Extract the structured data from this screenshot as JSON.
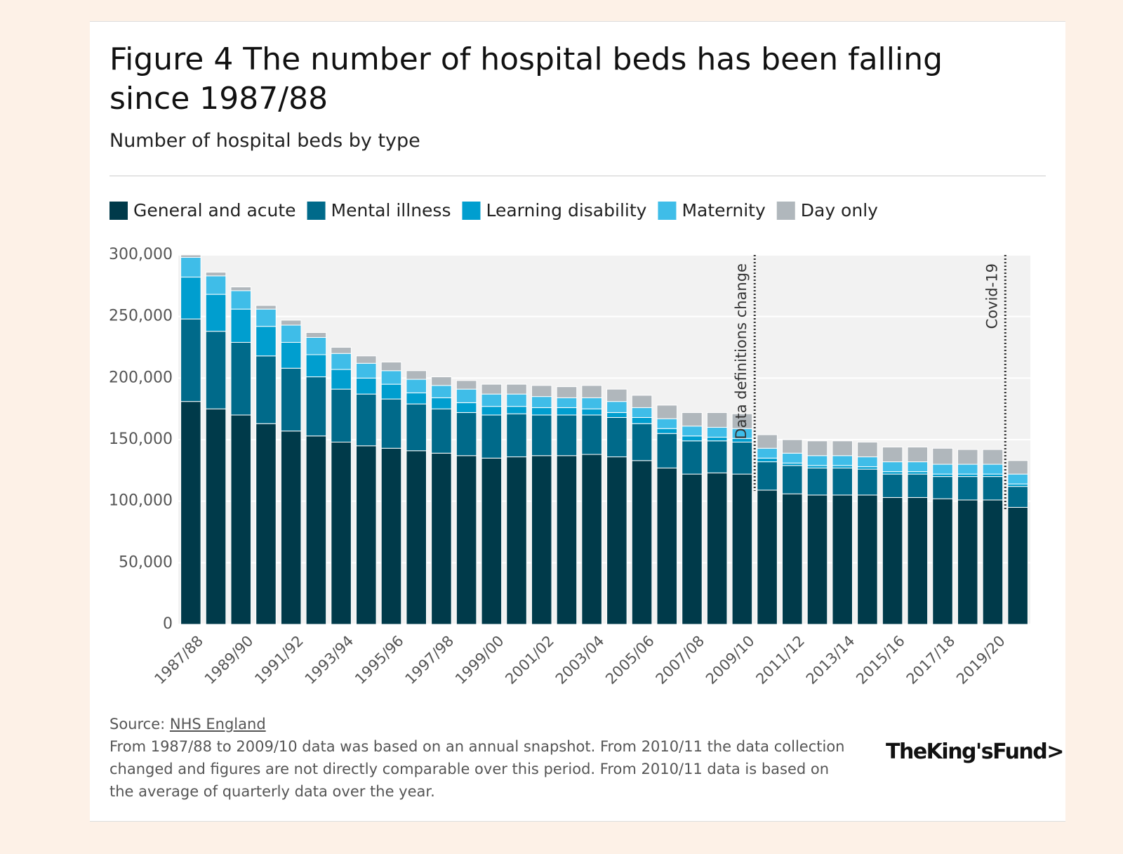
{
  "chart_data": {
    "type": "stacked_bar",
    "title": "Figure 4 The number of hospital beds has been falling since 1987/88",
    "subtitle": "Number of hospital beds by type",
    "categories": [
      "1987/88",
      null,
      "1989/90",
      null,
      "1991/92",
      null,
      "1993/94",
      null,
      "1995/96",
      null,
      "1997/98",
      null,
      "1999/00",
      null,
      "2001/02",
      null,
      "2003/04",
      null,
      "2005/06",
      null,
      "2007/08",
      null,
      "2009/10",
      null,
      "2011/12",
      null,
      "2013/14",
      null,
      "2015/16",
      null,
      "2017/18",
      null,
      "2019/20",
      null
    ],
    "series": [
      {
        "name": "General and acute",
        "color": "#003a4a",
        "values": [
          181000,
          175000,
          170000,
          163000,
          157000,
          153000,
          148000,
          145000,
          143000,
          141000,
          139000,
          137000,
          135000,
          136000,
          137000,
          137000,
          138000,
          136000,
          133000,
          127000,
          122000,
          123000,
          122000,
          109000,
          106000,
          105000,
          105000,
          105000,
          103000,
          103000,
          102000,
          101000,
          101000,
          95000
        ]
      },
      {
        "name": "Mental illness",
        "color": "#006a8a",
        "values": [
          67000,
          63000,
          59000,
          55000,
          51000,
          48000,
          43000,
          42000,
          40000,
          38000,
          36000,
          35000,
          35000,
          35000,
          33000,
          33000,
          32000,
          32000,
          30000,
          28000,
          27000,
          26000,
          26000,
          23000,
          23000,
          22000,
          22000,
          21000,
          19000,
          19000,
          18000,
          19000,
          19000,
          17000
        ]
      },
      {
        "name": "Learning disability",
        "color": "#009ecf",
        "values": [
          34000,
          30000,
          27000,
          24000,
          21000,
          18000,
          16000,
          13000,
          12000,
          9000,
          9000,
          8000,
          7000,
          6000,
          6000,
          6000,
          5000,
          4000,
          5000,
          4000,
          4000,
          3000,
          3000,
          3000,
          2000,
          2000,
          2000,
          2000,
          2000,
          2000,
          2000,
          2000,
          2000,
          2000
        ]
      },
      {
        "name": "Maternity",
        "color": "#3fbde8",
        "values": [
          16000,
          15000,
          15000,
          14000,
          14000,
          14000,
          13000,
          12000,
          11000,
          11000,
          10000,
          11000,
          10000,
          10000,
          9000,
          8000,
          9000,
          9000,
          8000,
          8000,
          8000,
          8000,
          8000,
          8000,
          8000,
          8000,
          8000,
          8000,
          8000,
          8000,
          8000,
          8000,
          8000,
          8000
        ]
      },
      {
        "name": "Day only",
        "color": "#b0b7bc",
        "values": [
          2000,
          3000,
          3000,
          3000,
          4000,
          4000,
          5000,
          6000,
          7000,
          7000,
          7000,
          7000,
          8000,
          8000,
          9000,
          9000,
          10000,
          10000,
          10000,
          11000,
          11000,
          12000,
          12000,
          11000,
          11000,
          12000,
          12000,
          12000,
          12000,
          12000,
          13000,
          12000,
          12000,
          11000
        ]
      }
    ],
    "ylim": [
      0,
      300000
    ],
    "yticks": [
      0,
      {
        "value": 50000,
        "label": "50,000"
      },
      {
        "value": 100000,
        "label": "100,000"
      },
      {
        "value": 150000,
        "label": "150,000"
      },
      {
        "value": 200000,
        "label": "200,000"
      },
      {
        "value": 250000,
        "label": "250,000"
      },
      {
        "value": 300000,
        "label": "300,000"
      }
    ],
    "grid": true,
    "annotations": [
      "Data definitions change",
      "Covid-19"
    ],
    "source_label": "Source:",
    "source_link": "NHS England",
    "note": "From 1987/88 to 2009/10 data was based on an annual snapshot. From 2010/11 the data collection changed and figures are not directly comparable over this period. From 2010/11 data is based on the average of quarterly data over the year.",
    "logo": "TheKing'sFund>"
  }
}
